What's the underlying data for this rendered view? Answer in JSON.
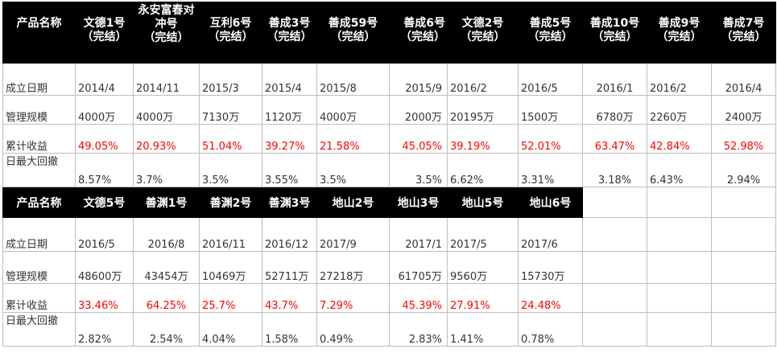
{
  "table1": {
    "header_label": "产品名称",
    "columns": [
      {
        "name": "文德1号",
        "status": "（完结）"
      },
      {
        "name": "永安富春对冲号",
        "status": "（完结）"
      },
      {
        "name": "互利6号",
        "status": "（完结）"
      },
      {
        "name": "善成3号",
        "status": "（完结）"
      },
      {
        "name": "善成59号",
        "status": "（完结）"
      },
      {
        "name": "善成6号",
        "status": "（完结）"
      },
      {
        "name": "文德2号",
        "status": "（完结）"
      },
      {
        "name": "善成5号",
        "status": "（完结）"
      },
      {
        "name": "善成10号",
        "status": "（完结）"
      },
      {
        "name": "善成9号",
        "status": "（完结）"
      },
      {
        "name": "善成7号",
        "status": "（完结）"
      }
    ],
    "rows": [
      {
        "label": "成立日期",
        "values": [
          "2014/4",
          "2014/11",
          "2015/3",
          "2015/4",
          "2015/8",
          "2015/9",
          "2016/2",
          "2016/5",
          "2016/1",
          "2016/2",
          "2016/4"
        ]
      },
      {
        "label": "管理规模",
        "values": [
          "4000万",
          "4000万",
          "7130万",
          "1120万",
          "4000万",
          "2000万",
          "20195万",
          "1500万",
          "6780万",
          "2260万",
          "2400万"
        ]
      },
      {
        "label": "累计收益",
        "values": [
          "49.05%",
          "20.93%",
          "51.04%",
          "39.27%",
          "21.58%",
          "45.05%",
          "39.19%",
          "52.01%",
          "63.47%",
          "42.84%",
          "52.98%"
        ]
      },
      {
        "label": "日最大回撤",
        "values": [
          "8.57%",
          "3.7%",
          "3.5%",
          "3.55%",
          "3.5%",
          "3.5%",
          "6.62%",
          "3.31%",
          "3.18%",
          "6.43%",
          "2.94%"
        ]
      }
    ]
  },
  "table2": {
    "header_label": "产品名称",
    "columns": [
      "文德5号",
      "善渊1号",
      "善渊2号",
      "善渊3号",
      "地山2号",
      "地山3号",
      "地山5号",
      "地山6号",
      "",
      "",
      ""
    ],
    "rows": [
      {
        "label": "成立日期",
        "values": [
          "2016/5",
          "2016/8",
          "2016/11",
          "2016/12",
          "2017/9",
          "2017/1",
          "2017/5",
          "2017/6",
          "",
          "",
          ""
        ]
      },
      {
        "label": "管理规模",
        "values": [
          "48600万",
          "43454万",
          "10469万",
          "52711万",
          "27218万",
          "61705万",
          "9560万",
          "15730万",
          "",
          "",
          ""
        ]
      },
      {
        "label": "累计收益",
        "values": [
          "33.46%",
          "64.25%",
          "25.7%",
          "43.7%",
          "7.29%",
          "45.39%",
          "27.91%",
          "24.48%",
          "",
          "",
          ""
        ]
      },
      {
        "label": "日最大回撤",
        "values": [
          "2.82%",
          "2.54%",
          "4.04%",
          "1.58%",
          "0.49%",
          "2.83%",
          "1.41%",
          "0.78%",
          "",
          "",
          ""
        ]
      }
    ]
  },
  "colors": {
    "header_bg": "#000000",
    "header_text": "#ffffff",
    "return_text": "#ff0000"
  }
}
